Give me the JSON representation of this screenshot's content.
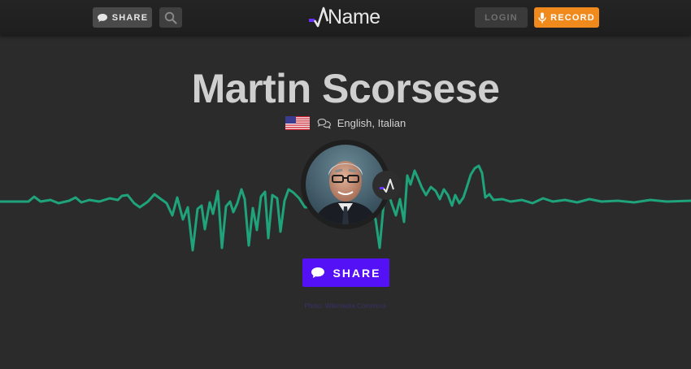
{
  "header": {
    "share_label": "SHARE",
    "logo_text": "Name",
    "login_label": "LOGIN",
    "record_label": "RECORD"
  },
  "profile": {
    "name": "Martin Scorsese",
    "languages": "English, Italian",
    "flag": "us-flag-icon"
  },
  "actions": {
    "share_label": "SHARE"
  },
  "footer": {
    "credit": "Photo: Wikimedia Commons"
  },
  "colors": {
    "wave": "#1fa37a",
    "accent_purple": "#5511f5",
    "record_orange": "#f08a1c",
    "background": "#2b2b2b"
  }
}
